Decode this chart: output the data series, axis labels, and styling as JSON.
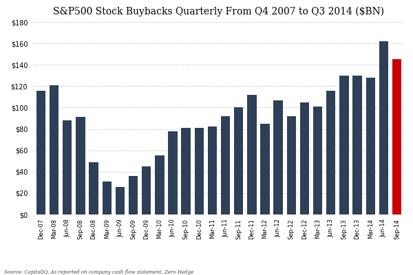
{
  "title": "S&P500 Stock Buybacks Quarterly From Q4 2007 to Q3 2014 ($BN)",
  "labels": [
    "Dec-07",
    "Mar-08",
    "Jun-08",
    "Sep-08",
    "Dec-08",
    "Mar-09",
    "Jun-09",
    "Sep-09",
    "Dec-09",
    "Mar-10",
    "Jun-10",
    "Sep-10",
    "Dec-10",
    "Mar-11",
    "Jun-11",
    "Sep-11",
    "Dec-11",
    "Mar-12",
    "Jun-12",
    "Sep-12",
    "Dec-12",
    "Mar-13",
    "Jun-13",
    "Sep-13",
    "Dec-13",
    "Mar-14",
    "Jun-14",
    "Sep-14"
  ],
  "values": [
    116,
    121,
    88,
    91,
    49,
    31,
    26,
    36,
    45,
    55,
    78,
    81,
    81,
    82,
    92,
    100,
    112,
    85,
    107,
    92,
    105,
    101,
    116,
    130,
    130,
    128,
    162,
    145
  ],
  "colors": [
    "#2e4057",
    "#2e4057",
    "#2e4057",
    "#2e4057",
    "#2e4057",
    "#2e4057",
    "#2e4057",
    "#2e4057",
    "#2e4057",
    "#2e4057",
    "#2e4057",
    "#2e4057",
    "#2e4057",
    "#2e4057",
    "#2e4057",
    "#2e4057",
    "#2e4057",
    "#2e4057",
    "#2e4057",
    "#2e4057",
    "#2e4057",
    "#2e4057",
    "#2e4057",
    "#2e4057",
    "#2e4057",
    "#2e4057",
    "#2e4057",
    "#cc0000"
  ],
  "ylim": [
    0,
    180
  ],
  "yticks": [
    0,
    20,
    40,
    60,
    80,
    100,
    120,
    140,
    160,
    180
  ],
  "source_text": "Source: CapitalIQ, As reported on company cash flow statement, Zero Hedge",
  "background_color": "#ffffff",
  "grid_color": "#cccccc",
  "title_fontsize": 10,
  "bar_color_dark": "#2e4057",
  "bar_color_red": "#cc0000"
}
